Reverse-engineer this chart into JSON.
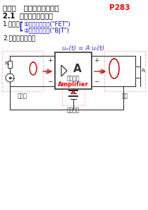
{
  "bg_color": "#ffffff",
  "title_text": "第二章   基本放大电路分析",
  "title_page": "P283",
  "section_title": "2.1  放大电路基本概念",
  "item1_label": "1.管子：",
  "item1_a": "①场效应晶体管(\"FET\")",
  "item1_b": "②双极型晶体管(\"BJT\")",
  "item2_label": "2.放大电路构成：",
  "formula": "uₒ(t) = A·uᵢ(t)",
  "amp_label2": "放大电路",
  "amp_label3": "Amplifier",
  "label_signal": "信号源",
  "label_dc": "直流电源",
  "label_load": "负载",
  "title_color": "#000000",
  "page_color": "#ff0000",
  "section_color": "#000000",
  "formula_color": "#3333cc",
  "amplifier_color": "#ff0000",
  "curve_color": "#cc0000",
  "arrow_color": "#cc0000",
  "brace_color": "#0000cc",
  "wire_color": "#333333",
  "box_outline": "#333333",
  "dashed_color": "#ffbbbb"
}
